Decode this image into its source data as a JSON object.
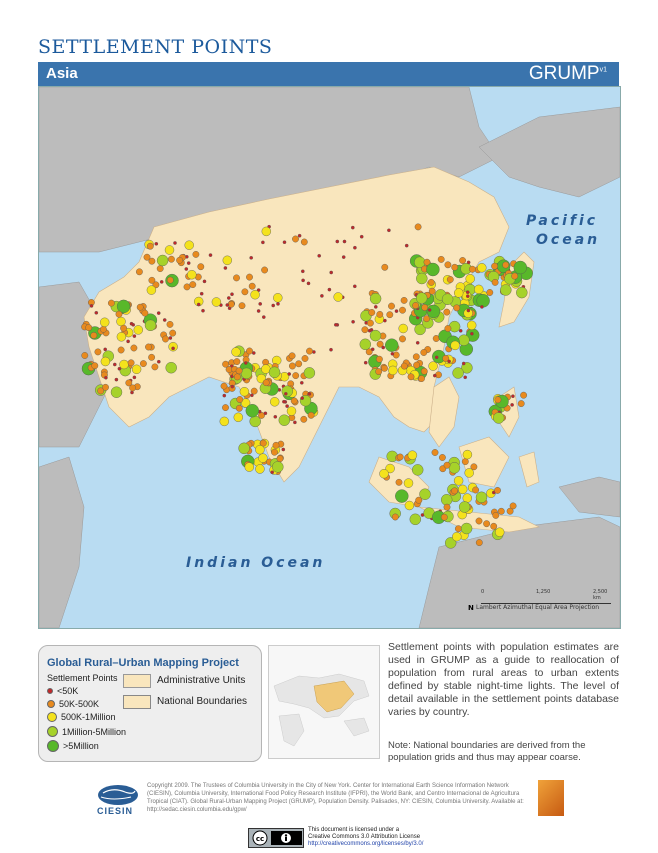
{
  "header": {
    "title": "SETTLEMENT POINTS",
    "region": "Asia",
    "brand": "GRUMP",
    "brand_version": "v1"
  },
  "map": {
    "ocean_labels": [
      "Pacific",
      "Ocean",
      "Indian Ocean"
    ],
    "projection": "Lambert Azimuthal Equal Area Projection",
    "scale_labels": [
      "0",
      "1,250",
      "2,500 km"
    ],
    "north_label": "N",
    "colors": {
      "water": "#b9dcf2",
      "land_outside": "#bcbcbc",
      "admin_units": "#f9e6bd",
      "settlement_small": "#c0282a",
      "settlement_50k": "#e88a1e",
      "settlement_500k": "#f4e21c",
      "settlement_1m": "#a6d22a",
      "settlement_5m": "#58b82a"
    }
  },
  "legend": {
    "title": "Global Rural–Urban Mapping Project",
    "subtitle": "Settlement Points",
    "classes": [
      {
        "label": "<50K",
        "color": "#c0282a"
      },
      {
        "label": "50K-500K",
        "color": "#e88a1e"
      },
      {
        "label": "500K-1Million",
        "color": "#f4e21c"
      },
      {
        "label": "1Million-5Million",
        "color": "#a6d22a"
      },
      {
        "label": ">5Million",
        "color": "#58b82a"
      }
    ],
    "admin_units_label": "Administrative Units",
    "national_boundaries_label": "National Boundaries"
  },
  "description": "Settlement points with population estimates are used in GRUMP as a guide to reallocation of population from rural areas to urban extents defined by stable night-time lights. The level of detail available in the settlement points database varies by country.",
  "note": "Note: National boundaries are derived from the population grids and thus may appear coarse.",
  "footer": {
    "ciesin": "CIESIN",
    "copyright": "Copyright 2009. The Trustees of Columbia University in the City of New York. Center for International Earth Science Information Network (CIESIN), Columbia University, International Food Policy Research Institute (IFPRI), the World Bank, and Centro Internacional de Agricultura Tropical (CIAT). Global Rural-Urban Mapping Project (GRUMP), Population Density. Palisades, NY: CIESIN, Columbia University. Available at: http://sedac.ciesin.columbia.edu/gpw/",
    "license_line1": "This document is licensed under a",
    "license_line2": "Creative Commons 3.0 Attribution License",
    "license_link": "http://creativecommons.org/licenses/by/3.0/"
  }
}
